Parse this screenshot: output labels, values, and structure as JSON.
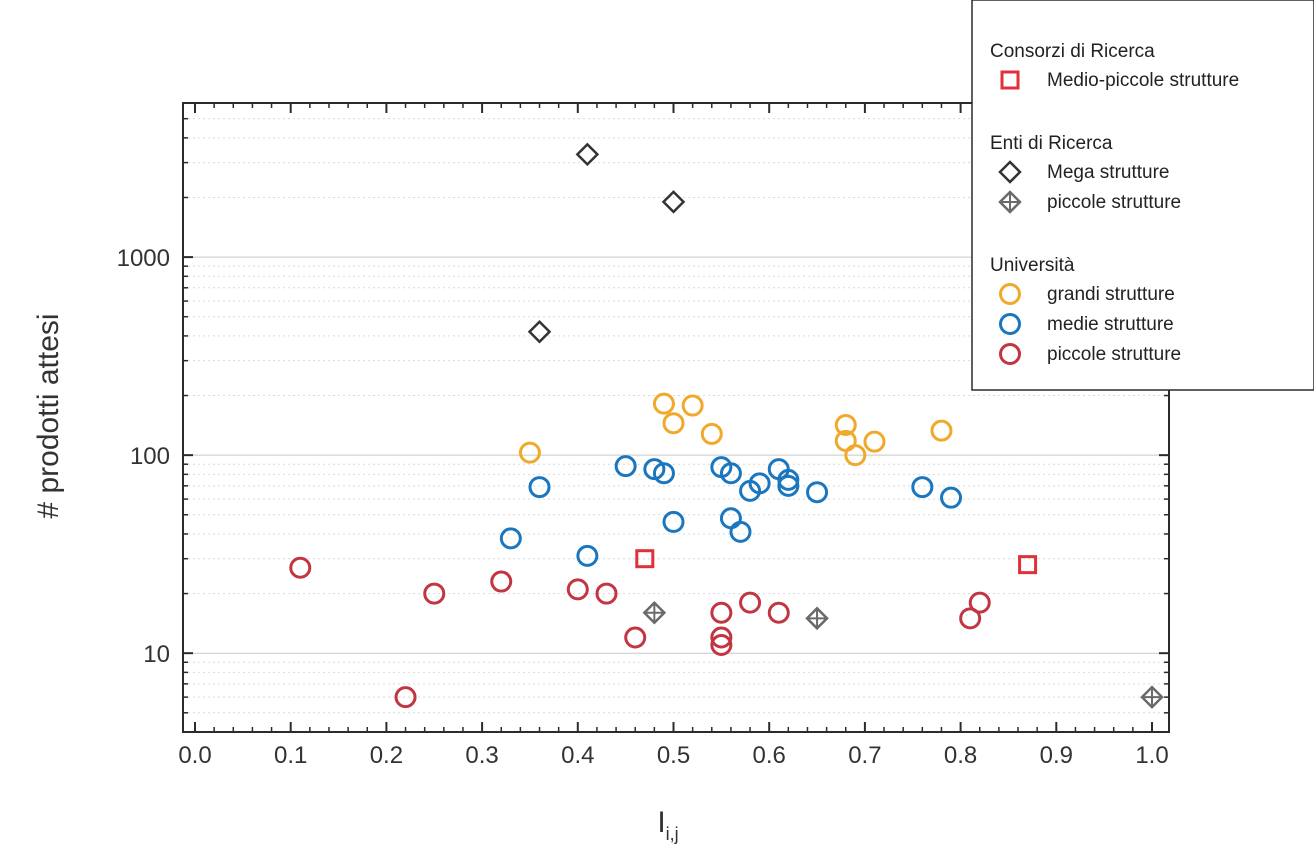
{
  "chart_data": {
    "type": "scatter",
    "xlabel_main": "I",
    "xlabel_sub": "i,j",
    "ylabel": "# prodotti attesi",
    "xlim": [
      0.0,
      1.0
    ],
    "ylim": [
      4,
      6000
    ],
    "yscale": "log",
    "x_ticks": [
      "0.0",
      "0.1",
      "0.2",
      "0.3",
      "0.4",
      "0.5",
      "0.6",
      "0.7",
      "0.8",
      "0.9",
      "1.0"
    ],
    "y_ticks": [
      {
        "value": 10,
        "label": "10"
      },
      {
        "value": 100,
        "label": "100"
      },
      {
        "value": 1000,
        "label": "1000"
      }
    ],
    "grid": "horizontal",
    "legend_position": "top-right",
    "legend": {
      "groups": [
        {
          "title": "Consorzi di Ricerca",
          "entries": [
            {
              "label": "Medio-piccole strutture",
              "series": 0
            }
          ]
        },
        {
          "title": "Enti di Ricerca",
          "entries": [
            {
              "label": "Mega strutture",
              "series": 1
            },
            {
              "label": "piccole strutture",
              "series": 2
            }
          ]
        },
        {
          "title": "Università",
          "entries": [
            {
              "label": "grandi strutture",
              "series": 3
            },
            {
              "label": "medie strutture",
              "series": 4
            },
            {
              "label": "piccole strutture",
              "series": 5
            }
          ]
        }
      ]
    },
    "series": [
      {
        "name": "Medio-piccole strutture",
        "group": "Consorzi di Ricerca",
        "marker": "square",
        "color": "#e0303a",
        "points": [
          [
            0.47,
            30
          ],
          [
            0.87,
            28
          ]
        ]
      },
      {
        "name": "Mega strutture",
        "group": "Enti di Ricerca",
        "marker": "diamond",
        "color": "#333333",
        "points": [
          [
            0.41,
            3300
          ],
          [
            0.5,
            1900
          ],
          [
            0.36,
            420
          ]
        ]
      },
      {
        "name": "piccole strutture",
        "group": "Enti di Ricerca",
        "marker": "diamond-cross",
        "color": "#6a6a6a",
        "points": [
          [
            0.48,
            16
          ],
          [
            0.65,
            15
          ],
          [
            1.0,
            6
          ]
        ]
      },
      {
        "name": "grandi strutture",
        "group": "Università",
        "marker": "circle",
        "color": "#f0a92a",
        "points": [
          [
            0.35,
            103
          ],
          [
            0.49,
            182
          ],
          [
            0.5,
            145
          ],
          [
            0.52,
            178
          ],
          [
            0.54,
            128
          ],
          [
            0.68,
            142
          ],
          [
            0.68,
            118
          ],
          [
            0.69,
            100
          ],
          [
            0.71,
            117
          ],
          [
            0.78,
            133
          ]
        ]
      },
      {
        "name": "medie strutture",
        "group": "Università",
        "marker": "circle",
        "color": "#1a77bf",
        "points": [
          [
            0.33,
            38
          ],
          [
            0.36,
            69
          ],
          [
            0.41,
            31
          ],
          [
            0.45,
            88
          ],
          [
            0.48,
            85
          ],
          [
            0.49,
            81
          ],
          [
            0.5,
            46
          ],
          [
            0.55,
            87
          ],
          [
            0.56,
            81
          ],
          [
            0.56,
            48
          ],
          [
            0.57,
            41
          ],
          [
            0.58,
            66
          ],
          [
            0.59,
            72
          ],
          [
            0.61,
            85
          ],
          [
            0.62,
            75
          ],
          [
            0.62,
            70
          ],
          [
            0.65,
            65
          ],
          [
            0.76,
            69
          ],
          [
            0.79,
            61
          ]
        ]
      },
      {
        "name": "piccole strutture",
        "group": "Università",
        "marker": "circle",
        "color": "#c23642",
        "points": [
          [
            0.11,
            27
          ],
          [
            0.22,
            6
          ],
          [
            0.25,
            20
          ],
          [
            0.32,
            23
          ],
          [
            0.4,
            21
          ],
          [
            0.43,
            20
          ],
          [
            0.46,
            12
          ],
          [
            0.55,
            16
          ],
          [
            0.55,
            12
          ],
          [
            0.55,
            11
          ],
          [
            0.58,
            18
          ],
          [
            0.61,
            16
          ],
          [
            0.81,
            15
          ],
          [
            0.82,
            18
          ]
        ]
      }
    ]
  }
}
